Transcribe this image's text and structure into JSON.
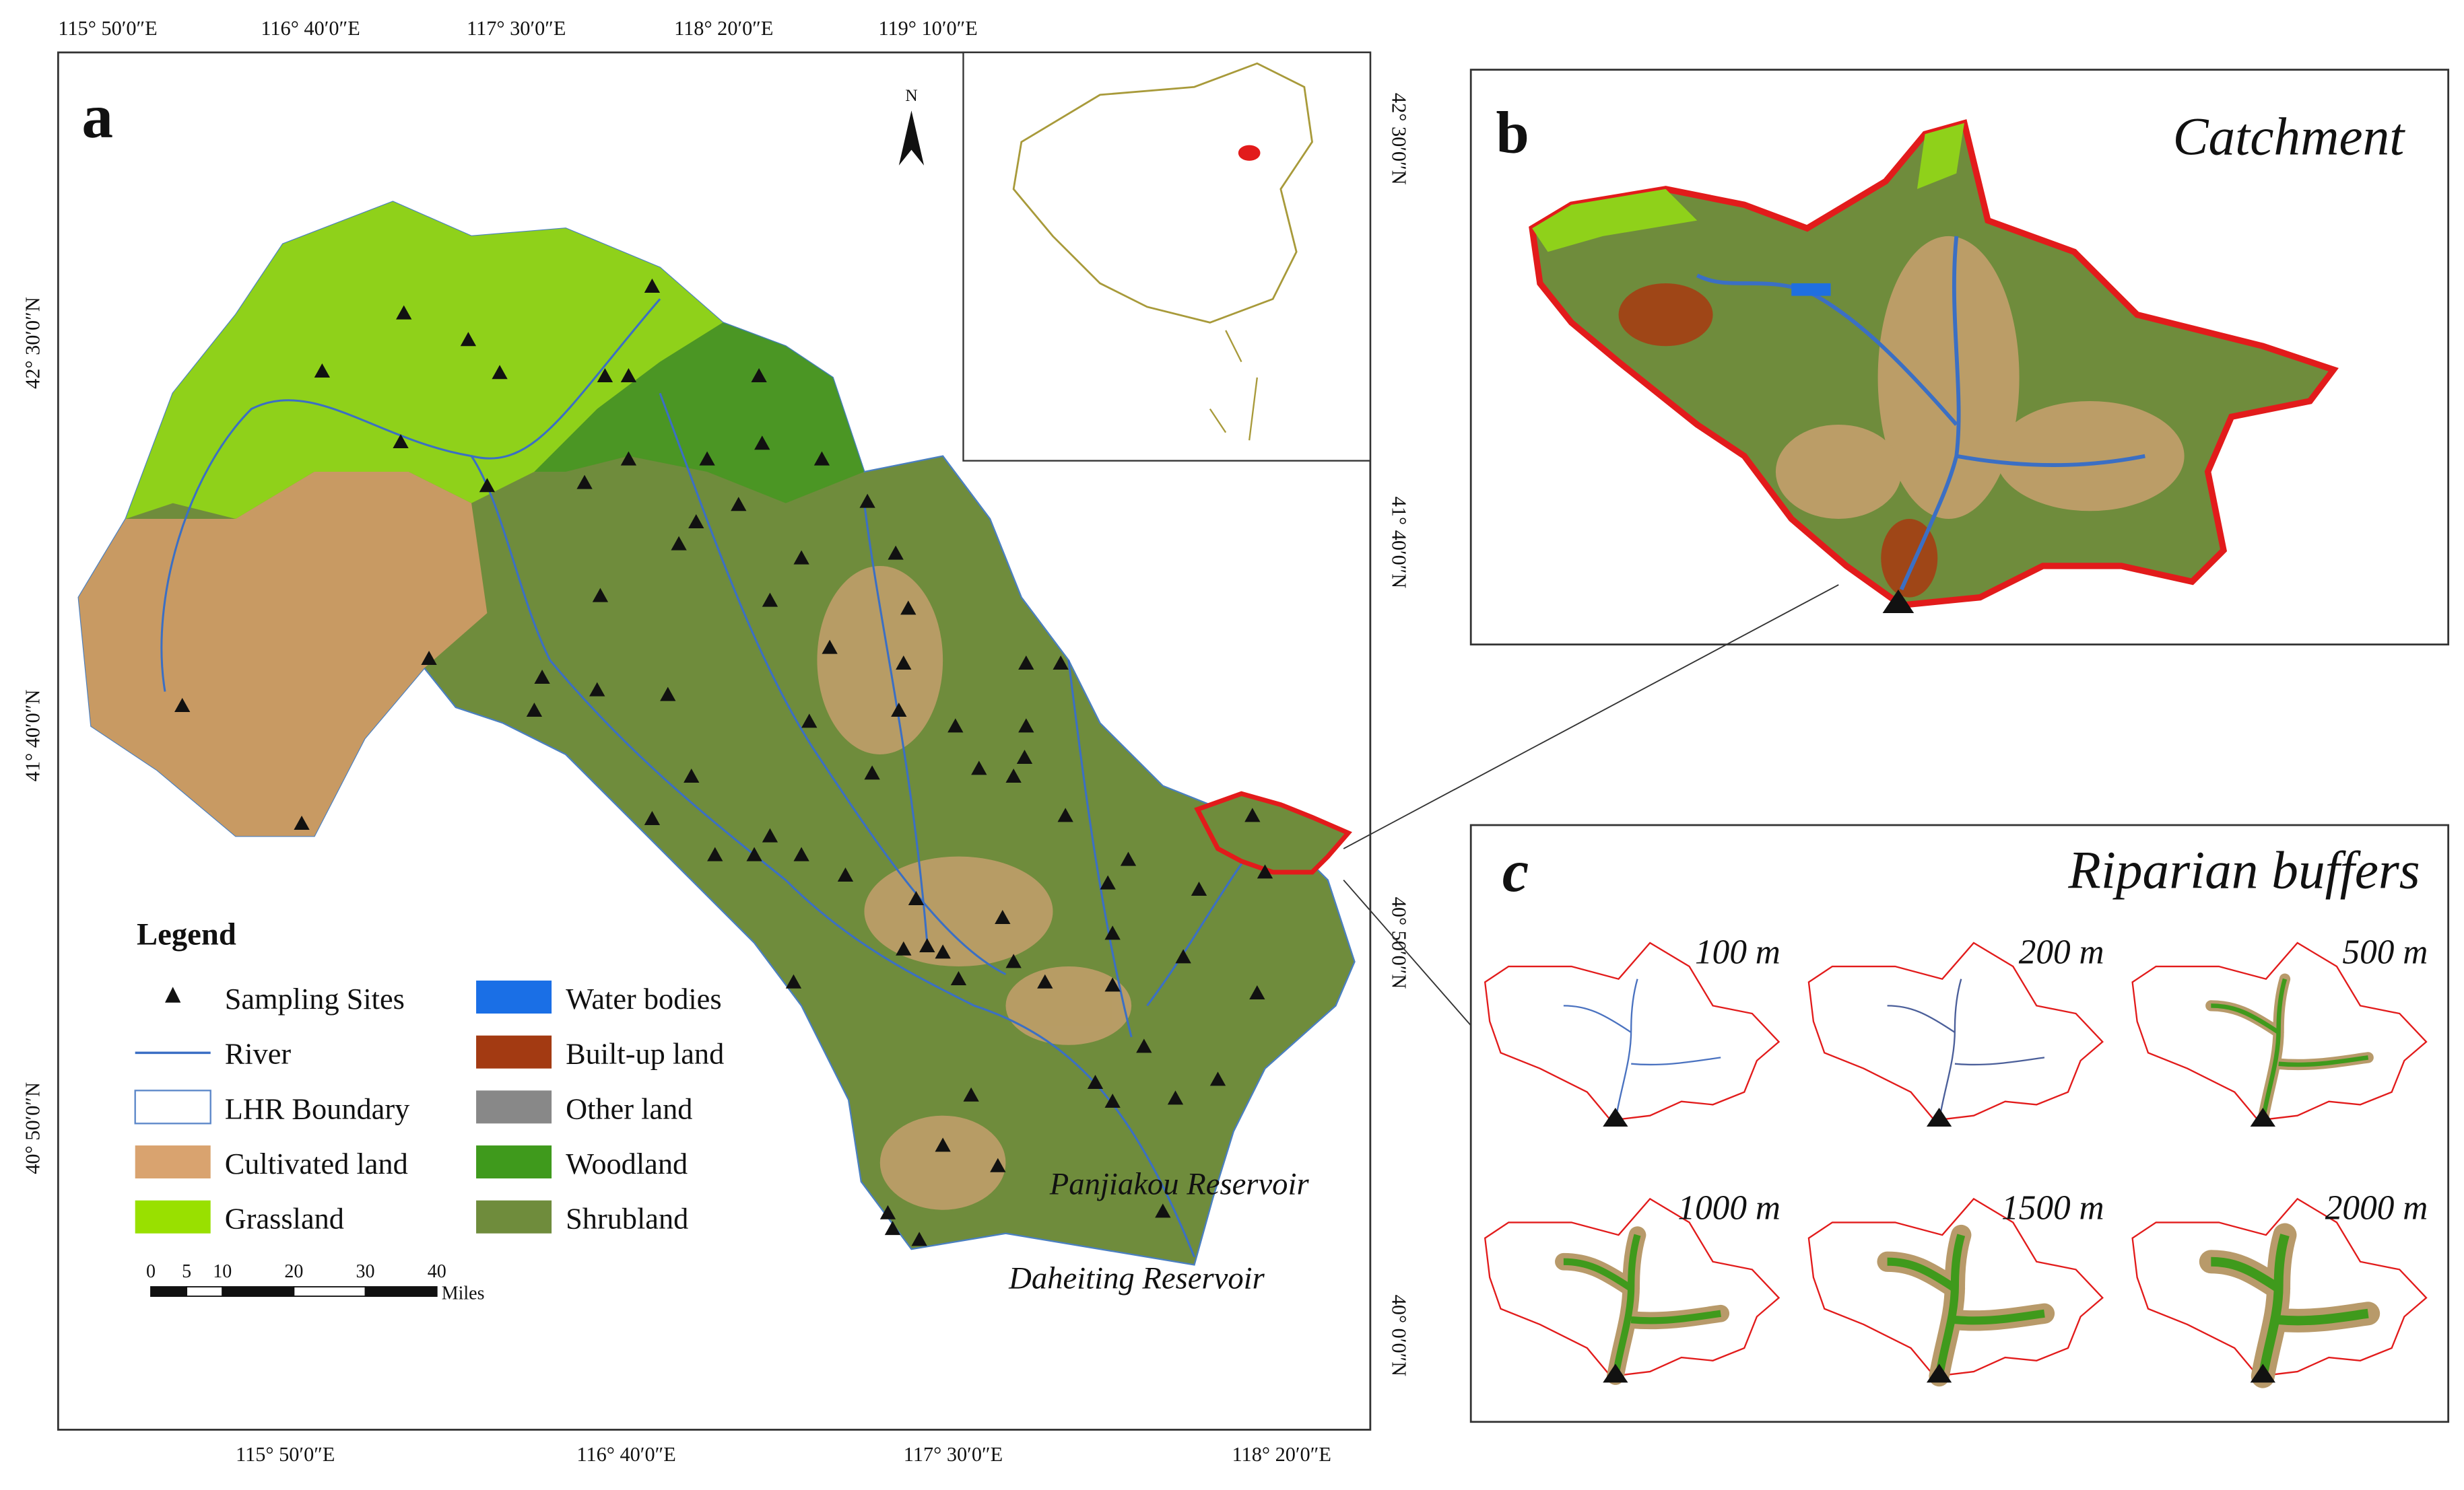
{
  "panel_a": {
    "label": "a",
    "north": "N",
    "top_coords": [
      "115° 50′0″E",
      "116° 40′0″E",
      "117° 30′0″E",
      "118° 20′0″E",
      "119° 10′0″E"
    ],
    "bottom_coords": [
      "115° 50′0″E",
      "116° 40′0″E",
      "117° 30′0″E",
      "118° 20′0″E"
    ],
    "left_coords": [
      "42° 30′0″N",
      "41° 40′0″N",
      "40° 50′0″N"
    ],
    "right_coords": [
      "42° 30′0″N",
      "41° 40′0″N",
      "40° 50′0″N",
      "40° 0′0″N"
    ],
    "reservoirs": [
      "Panjiakou Reservoir",
      "Daheiting Reservoir"
    ],
    "scale": {
      "ticks": [
        0,
        5,
        10,
        20,
        30,
        40
      ],
      "unit": "Miles"
    },
    "legend": {
      "title": "Legend",
      "items": [
        "Sampling Sites",
        "River",
        "LHR Boundary",
        "Cultivated land",
        "Grassland",
        "Water bodies",
        "Built-up land",
        "Other land",
        "Woodland",
        "Shrubland"
      ]
    }
  },
  "panel_b": {
    "label": "b",
    "title": "Catchment"
  },
  "panel_c": {
    "label": "c",
    "title": "Riparian buffers",
    "buffers": [
      "100 m",
      "200 m",
      "500 m",
      "1000 m",
      "1500 m",
      "2000 m"
    ]
  }
}
